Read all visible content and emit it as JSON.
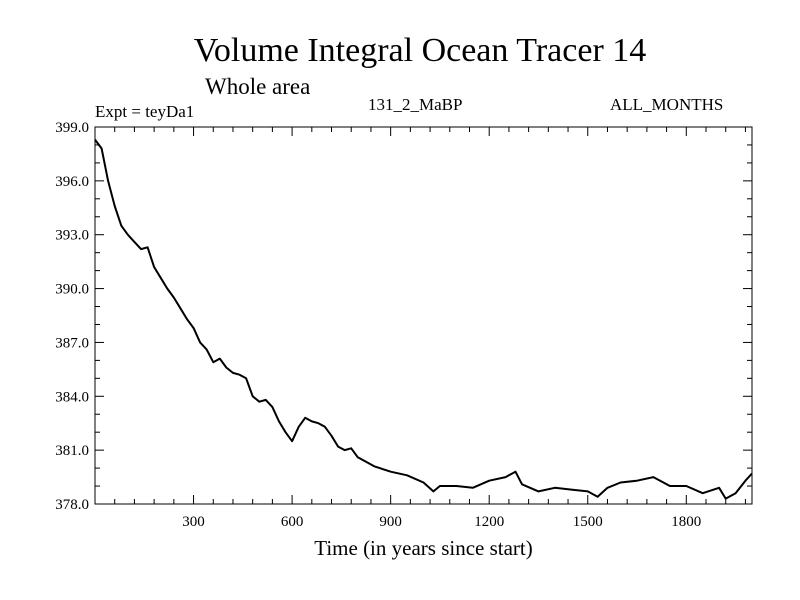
{
  "chart_data": {
    "type": "line",
    "title": "Volume Integral Ocean Tracer 14",
    "subtitle": "Whole area",
    "left_label": "Expt = teyDa1",
    "center_label": "131_2_MaBP",
    "right_label": "ALL_MONTHS",
    "xlabel": "Time (in years since start)",
    "ylabel": "",
    "xlim": [
      0,
      2000
    ],
    "ylim": [
      378.0,
      399.0
    ],
    "xticks": [
      300,
      600,
      900,
      1200,
      1500,
      1800
    ],
    "xtick_labels": [
      "300",
      "600",
      "900",
      "1200",
      "1500",
      "1800"
    ],
    "yticks": [
      378.0,
      381.0,
      384.0,
      387.0,
      390.0,
      393.0,
      396.0,
      399.0
    ],
    "ytick_labels": [
      "378.0",
      "381.0",
      "384.0",
      "387.0",
      "390.0",
      "393.0",
      "396.0",
      "399.0"
    ],
    "series": [
      {
        "name": "Volume Integral Ocean Tracer 14",
        "x": [
          0,
          20,
          40,
          60,
          80,
          100,
          120,
          140,
          160,
          180,
          200,
          220,
          240,
          260,
          280,
          300,
          320,
          340,
          360,
          380,
          400,
          420,
          440,
          460,
          480,
          500,
          520,
          540,
          560,
          580,
          600,
          620,
          640,
          660,
          680,
          700,
          720,
          740,
          760,
          780,
          800,
          850,
          900,
          950,
          1000,
          1030,
          1050,
          1100,
          1150,
          1200,
          1250,
          1280,
          1300,
          1350,
          1400,
          1450,
          1500,
          1530,
          1560,
          1600,
          1650,
          1700,
          1750,
          1800,
          1850,
          1900,
          1920,
          1950,
          1980,
          2000
        ],
        "values": [
          398.3,
          397.8,
          396.0,
          394.6,
          393.5,
          393.0,
          392.6,
          392.2,
          392.3,
          391.2,
          390.6,
          390.0,
          389.5,
          388.9,
          388.3,
          387.8,
          387.0,
          386.6,
          385.9,
          386.1,
          385.6,
          385.3,
          385.2,
          385.0,
          384.0,
          383.7,
          383.8,
          383.4,
          382.6,
          382.0,
          381.5,
          382.3,
          382.8,
          382.6,
          382.5,
          382.3,
          381.8,
          381.2,
          381.0,
          381.1,
          380.6,
          380.1,
          379.8,
          379.6,
          379.2,
          378.7,
          379.0,
          379.0,
          378.9,
          379.3,
          379.5,
          379.8,
          379.1,
          378.7,
          378.9,
          378.8,
          378.7,
          378.4,
          378.9,
          379.2,
          379.3,
          379.5,
          379.0,
          379.0,
          378.6,
          378.9,
          378.3,
          378.6,
          379.3,
          379.7
        ]
      }
    ]
  }
}
